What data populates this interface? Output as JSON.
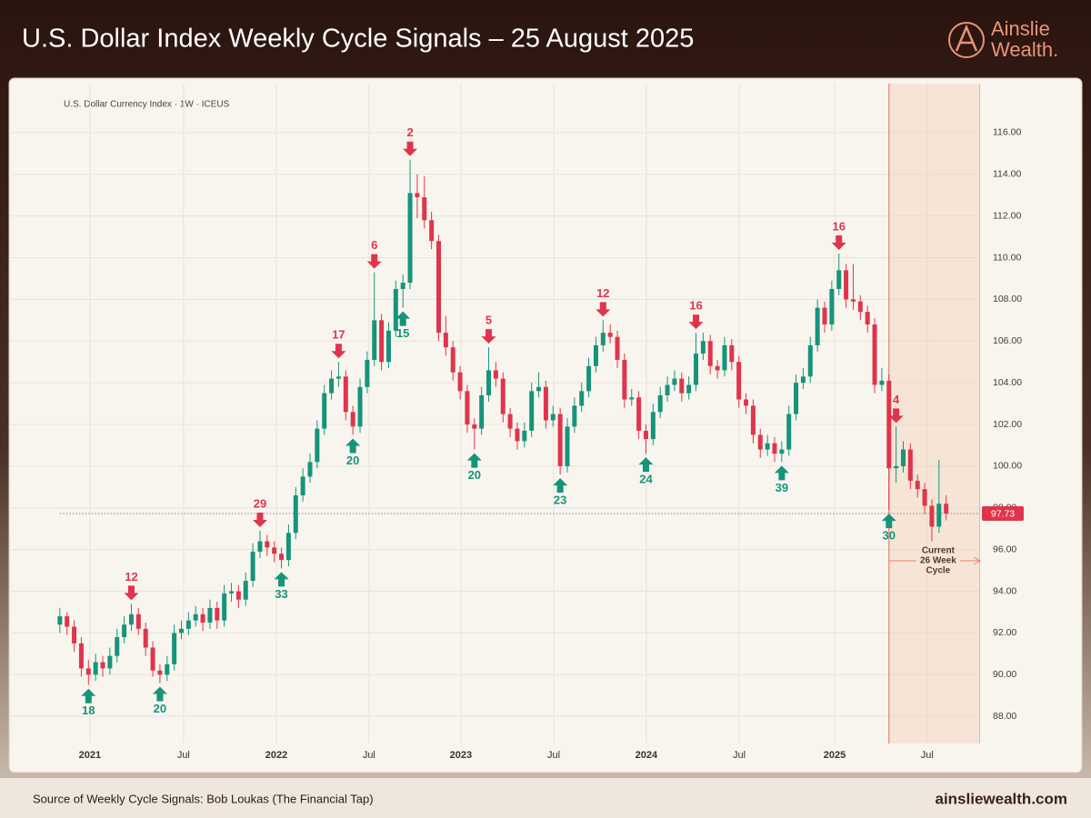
{
  "header": {
    "title": "U.S. Dollar Index Weekly Cycle Signals – 25 August 2025",
    "logo": [
      "Ainslie",
      "Wealth."
    ]
  },
  "chart_data": {
    "type": "candlestick",
    "subtitle": "U.S. Dollar Currency Index · 1W · ICEUS",
    "up_color": "#16947a",
    "down_color": "#e0344c",
    "x": [
      0,
      2,
      4,
      6,
      8,
      10,
      12,
      14,
      16,
      18,
      20,
      22,
      24,
      26,
      28,
      30,
      32,
      34,
      36,
      38,
      40,
      42,
      44,
      46,
      48,
      50,
      52,
      54,
      56,
      58,
      60,
      62,
      64,
      66,
      68,
      70,
      72,
      74,
      76,
      78,
      80,
      82,
      84,
      86,
      88,
      90,
      92,
      94,
      96,
      98,
      100,
      102,
      104,
      106,
      108,
      110,
      112,
      114,
      116,
      118,
      120,
      122,
      124,
      126,
      128,
      130,
      132,
      134,
      136,
      138,
      140,
      142,
      144,
      146,
      148,
      150,
      152,
      154,
      156,
      158,
      160,
      162,
      164,
      166,
      168,
      170,
      172,
      174,
      176,
      178,
      180,
      182,
      184,
      186,
      188,
      190,
      192,
      194,
      196,
      198,
      200,
      202,
      204,
      206,
      208,
      210,
      212,
      214,
      216,
      218,
      220,
      222,
      224,
      226,
      228,
      230,
      232,
      234,
      236,
      238,
      240,
      242,
      244,
      246,
      248
    ],
    "ohlc": [
      [
        92.4,
        93.2,
        92.0,
        92.8
      ],
      [
        92.8,
        93.0,
        91.9,
        92.3
      ],
      [
        92.3,
        92.6,
        91.1,
        91.5
      ],
      [
        91.5,
        91.8,
        89.9,
        90.3
      ],
      [
        90.3,
        90.7,
        89.5,
        90.0
      ],
      [
        90.0,
        91.0,
        89.7,
        90.6
      ],
      [
        90.6,
        90.9,
        89.9,
        90.3
      ],
      [
        90.3,
        91.3,
        90.0,
        90.9
      ],
      [
        90.9,
        92.2,
        90.6,
        91.8
      ],
      [
        91.8,
        92.8,
        91.5,
        92.4
      ],
      [
        92.4,
        93.4,
        92.1,
        92.9
      ],
      [
        92.9,
        93.2,
        91.9,
        92.2
      ],
      [
        92.2,
        92.5,
        90.9,
        91.3
      ],
      [
        91.3,
        91.6,
        89.9,
        90.2
      ],
      [
        90.2,
        90.5,
        89.6,
        90.0
      ],
      [
        90.0,
        90.9,
        89.7,
        90.5
      ],
      [
        90.5,
        92.4,
        90.2,
        92.0
      ],
      [
        92.0,
        92.6,
        91.7,
        92.2
      ],
      [
        92.2,
        93.0,
        91.9,
        92.6
      ],
      [
        92.6,
        93.3,
        92.3,
        92.9
      ],
      [
        92.9,
        93.2,
        92.1,
        92.5
      ],
      [
        92.5,
        93.6,
        92.2,
        93.2
      ],
      [
        93.2,
        93.5,
        92.2,
        92.6
      ],
      [
        92.6,
        94.3,
        92.3,
        93.9
      ],
      [
        93.9,
        94.4,
        93.5,
        94.0
      ],
      [
        94.0,
        94.3,
        93.2,
        93.6
      ],
      [
        93.6,
        94.9,
        93.3,
        94.5
      ],
      [
        94.5,
        96.3,
        94.2,
        95.9
      ],
      [
        95.9,
        96.9,
        95.6,
        96.4
      ],
      [
        96.4,
        96.7,
        95.7,
        96.1
      ],
      [
        96.1,
        96.4,
        95.4,
        95.8
      ],
      [
        95.8,
        96.1,
        95.1,
        95.5
      ],
      [
        95.5,
        97.2,
        95.2,
        96.8
      ],
      [
        96.8,
        99.0,
        96.5,
        98.6
      ],
      [
        98.6,
        99.9,
        98.3,
        99.5
      ],
      [
        99.5,
        100.6,
        99.2,
        100.2
      ],
      [
        100.2,
        102.2,
        99.9,
        101.8
      ],
      [
        101.8,
        103.9,
        101.5,
        103.5
      ],
      [
        103.5,
        104.6,
        103.2,
        104.2
      ],
      [
        104.2,
        105.0,
        103.8,
        104.3
      ],
      [
        104.3,
        104.6,
        102.2,
        102.6
      ],
      [
        102.6,
        102.9,
        101.5,
        101.9
      ],
      [
        101.9,
        104.2,
        101.6,
        103.8
      ],
      [
        103.8,
        105.5,
        103.5,
        105.1
      ],
      [
        105.1,
        109.3,
        104.8,
        107.0
      ],
      [
        107.0,
        107.3,
        104.6,
        105.0
      ],
      [
        105.0,
        106.9,
        104.7,
        106.5
      ],
      [
        106.5,
        108.9,
        106.2,
        108.5
      ],
      [
        108.5,
        109.2,
        107.6,
        108.8
      ],
      [
        108.8,
        114.7,
        108.5,
        113.1
      ],
      [
        113.1,
        114.0,
        111.9,
        112.9
      ],
      [
        112.9,
        113.9,
        111.4,
        111.8
      ],
      [
        111.8,
        112.2,
        110.4,
        110.8
      ],
      [
        110.8,
        111.1,
        106.0,
        106.4
      ],
      [
        106.4,
        107.2,
        105.3,
        105.7
      ],
      [
        105.7,
        106.0,
        104.1,
        104.5
      ],
      [
        104.5,
        104.8,
        103.2,
        103.6
      ],
      [
        103.6,
        103.9,
        101.6,
        102.0
      ],
      [
        102.0,
        102.3,
        100.8,
        101.8
      ],
      [
        101.8,
        103.8,
        101.5,
        103.4
      ],
      [
        103.4,
        105.7,
        103.1,
        104.6
      ],
      [
        104.6,
        105.0,
        103.8,
        104.2
      ],
      [
        104.2,
        104.5,
        102.1,
        102.5
      ],
      [
        102.5,
        102.8,
        101.4,
        101.8
      ],
      [
        101.8,
        102.1,
        100.8,
        101.2
      ],
      [
        101.2,
        102.1,
        100.9,
        101.7
      ],
      [
        101.7,
        104.0,
        101.4,
        103.6
      ],
      [
        103.6,
        104.5,
        103.3,
        103.8
      ],
      [
        103.8,
        104.1,
        101.8,
        102.2
      ],
      [
        102.2,
        102.9,
        101.9,
        102.5
      ],
      [
        102.5,
        102.8,
        99.6,
        100.0
      ],
      [
        100.0,
        102.3,
        99.7,
        101.9
      ],
      [
        101.9,
        103.3,
        101.6,
        102.9
      ],
      [
        102.9,
        104.0,
        102.6,
        103.6
      ],
      [
        103.6,
        105.2,
        103.3,
        104.8
      ],
      [
        104.8,
        106.2,
        104.5,
        105.8
      ],
      [
        105.8,
        107.0,
        105.5,
        106.4
      ],
      [
        106.4,
        106.8,
        105.9,
        106.2
      ],
      [
        106.2,
        106.5,
        104.7,
        105.1
      ],
      [
        105.1,
        105.4,
        102.8,
        103.2
      ],
      [
        103.2,
        103.7,
        102.9,
        103.3
      ],
      [
        103.3,
        103.6,
        101.3,
        101.7
      ],
      [
        101.7,
        102.0,
        100.6,
        101.3
      ],
      [
        101.3,
        103.0,
        101.0,
        102.6
      ],
      [
        102.6,
        103.8,
        102.3,
        103.4
      ],
      [
        103.4,
        104.3,
        103.1,
        103.9
      ],
      [
        103.9,
        104.6,
        103.6,
        104.2
      ],
      [
        104.2,
        104.5,
        103.1,
        103.5
      ],
      [
        103.5,
        104.3,
        103.2,
        103.9
      ],
      [
        103.9,
        106.4,
        103.6,
        105.4
      ],
      [
        105.4,
        106.4,
        105.1,
        106.0
      ],
      [
        106.0,
        106.3,
        104.4,
        104.8
      ],
      [
        104.8,
        105.1,
        104.2,
        104.6
      ],
      [
        104.6,
        106.2,
        104.3,
        105.8
      ],
      [
        105.8,
        106.1,
        104.6,
        105.0
      ],
      [
        105.0,
        105.3,
        102.8,
        103.2
      ],
      [
        103.2,
        103.5,
        102.5,
        102.9
      ],
      [
        102.9,
        103.2,
        101.1,
        101.5
      ],
      [
        101.5,
        101.8,
        100.4,
        100.8
      ],
      [
        100.8,
        101.5,
        100.5,
        101.1
      ],
      [
        101.1,
        101.4,
        100.2,
        100.6
      ],
      [
        100.6,
        101.2,
        100.2,
        100.8
      ],
      [
        100.8,
        102.9,
        100.5,
        102.5
      ],
      [
        102.5,
        104.4,
        102.2,
        104.0
      ],
      [
        104.0,
        104.7,
        103.7,
        104.3
      ],
      [
        104.3,
        106.2,
        104.0,
        105.8
      ],
      [
        105.8,
        108.0,
        105.5,
        107.6
      ],
      [
        107.6,
        107.9,
        106.4,
        106.8
      ],
      [
        106.8,
        108.9,
        106.5,
        108.5
      ],
      [
        108.5,
        110.2,
        108.2,
        109.4
      ],
      [
        109.4,
        109.7,
        107.6,
        108.0
      ],
      [
        108.0,
        109.7,
        107.5,
        107.9
      ],
      [
        107.9,
        108.2,
        107.0,
        107.4
      ],
      [
        107.4,
        107.7,
        106.4,
        106.8
      ],
      [
        106.8,
        107.1,
        103.5,
        103.9
      ],
      [
        103.9,
        104.7,
        103.6,
        104.1
      ],
      [
        104.1,
        104.4,
        97.9,
        99.9
      ],
      [
        99.9,
        101.9,
        99.2,
        100.0
      ],
      [
        100.0,
        101.2,
        99.7,
        100.8
      ],
      [
        100.8,
        101.1,
        98.9,
        99.3
      ],
      [
        99.3,
        99.6,
        98.5,
        98.9
      ],
      [
        98.9,
        99.2,
        97.7,
        98.1
      ],
      [
        98.1,
        98.4,
        96.4,
        97.1
      ],
      [
        97.1,
        100.3,
        96.8,
        98.2
      ],
      [
        98.2,
        98.6,
        97.4,
        97.73
      ]
    ],
    "last_price": 97.73,
    "signals": [
      {
        "type": "bottom",
        "label": "18",
        "x": 8,
        "price": 89.5
      },
      {
        "type": "top",
        "label": "12",
        "x": 20,
        "price": 93.4
      },
      {
        "type": "bottom",
        "label": "20",
        "x": 28,
        "price": 89.6
      },
      {
        "type": "top",
        "label": "29",
        "x": 56,
        "price": 96.9
      },
      {
        "type": "bottom",
        "label": "33",
        "x": 62,
        "price": 95.1
      },
      {
        "type": "top",
        "label": "17",
        "x": 78,
        "price": 105.0
      },
      {
        "type": "bottom",
        "label": "20",
        "x": 82,
        "price": 101.5
      },
      {
        "type": "top",
        "label": "6",
        "x": 88,
        "price": 109.3
      },
      {
        "type": "bottom",
        "label": "15",
        "x": 96,
        "price": 107.6
      },
      {
        "type": "top",
        "label": "2",
        "x": 98,
        "price": 114.7
      },
      {
        "type": "bottom",
        "label": "20",
        "x": 116,
        "price": 100.8
      },
      {
        "type": "top",
        "label": "5",
        "x": 120,
        "price": 105.7
      },
      {
        "type": "bottom",
        "label": "23",
        "x": 140,
        "price": 99.6
      },
      {
        "type": "top",
        "label": "12",
        "x": 152,
        "price": 107.0
      },
      {
        "type": "bottom",
        "label": "24",
        "x": 164,
        "price": 100.6
      },
      {
        "type": "top",
        "label": "16",
        "x": 178,
        "price": 106.4
      },
      {
        "type": "bottom",
        "label": "39",
        "x": 202,
        "price": 100.2
      },
      {
        "type": "top",
        "label": "16",
        "x": 218,
        "price": 110.2
      },
      {
        "type": "bottom",
        "label": "30",
        "x": 232,
        "price": 97.9
      },
      {
        "type": "top",
        "label": "4",
        "x": 234,
        "price": 101.9
      }
    ],
    "highlight": {
      "x": 232,
      "label": [
        "Current",
        "26 Week",
        "Cycle"
      ]
    },
    "xlim": [
      -13.7,
      257.5
    ],
    "ylim": [
      86.7,
      118.35
    ],
    "xticks": [
      {
        "value": 8.4,
        "label": "2021"
      },
      {
        "value": 34.6,
        "label": "Jul"
      },
      {
        "value": 60.6,
        "label": "2022"
      },
      {
        "value": 86.5,
        "label": "Jul"
      },
      {
        "value": 112.2,
        "label": "2023"
      },
      {
        "value": 138.2,
        "label": "Jul"
      },
      {
        "value": 164.1,
        "label": "2024"
      },
      {
        "value": 190.1,
        "label": "Jul"
      },
      {
        "value": 216.8,
        "label": "2025"
      },
      {
        "value": 242.7,
        "label": "Jul"
      }
    ],
    "yticks": [
      {
        "value": 88,
        "label": "88.00"
      },
      {
        "value": 90,
        "label": "90.00"
      },
      {
        "value": 92,
        "label": "92.00"
      },
      {
        "value": 94,
        "label": "94.00"
      },
      {
        "value": 96,
        "label": "96.00"
      },
      {
        "value": 98,
        "label": "98.00"
      },
      {
        "value": 100,
        "label": "100.00"
      },
      {
        "value": 102,
        "label": "102.00"
      },
      {
        "value": 104,
        "label": "104.00"
      },
      {
        "value": 106,
        "label": "106.00"
      },
      {
        "value": 108,
        "label": "108.00"
      },
      {
        "value": 110,
        "label": "110.00"
      },
      {
        "value": 112,
        "label": "112.00"
      },
      {
        "value": 114,
        "label": "114.00"
      },
      {
        "value": 116,
        "label": "116.00"
      }
    ],
    "grid": true
  },
  "footer": {
    "source": "Source of Weekly Cycle Signals: Bob Loukas (The Financial Tap)",
    "site": "ainsliewealth.com"
  }
}
